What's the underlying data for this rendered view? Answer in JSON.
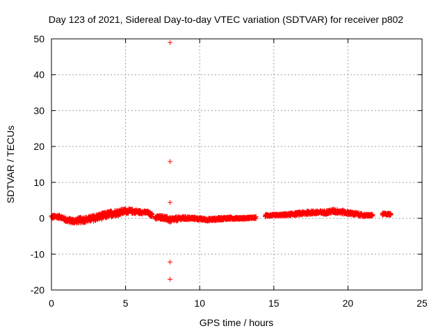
{
  "chart_data": {
    "type": "scatter",
    "title": "Day 123 of 2021, Sidereal Day-to-day VTEC variation (SDTVAR) for receiver p802",
    "xlabel": "GPS time / hours",
    "ylabel": "SDTVAR / TECUs",
    "xlim": [
      0,
      25
    ],
    "ylim": [
      -20,
      50
    ],
    "xticks": [
      0,
      5,
      10,
      15,
      20,
      25
    ],
    "yticks": [
      -20,
      -10,
      0,
      10,
      20,
      30,
      40,
      50
    ],
    "grid": true,
    "marker": "+",
    "color": "#ff0000",
    "series": [
      {
        "name": "SDTVAR",
        "outliers": [
          [
            8.0,
            49.0
          ],
          [
            8.0,
            15.8
          ],
          [
            8.0,
            4.4
          ],
          [
            8.0,
            -12.2
          ],
          [
            8.0,
            -17.0
          ]
        ],
        "profile": [
          [
            0.0,
            0.4,
            1.0
          ],
          [
            0.3,
            0.4,
            1.0
          ],
          [
            0.6,
            0.4,
            1.0
          ],
          [
            0.8,
            0.0,
            1.0
          ],
          [
            1.0,
            -0.5,
            1.2
          ],
          [
            1.5,
            -0.8,
            1.4
          ],
          [
            2.0,
            -0.5,
            1.6
          ],
          [
            2.5,
            -0.3,
            1.6
          ],
          [
            3.0,
            0.2,
            1.8
          ],
          [
            3.5,
            0.7,
            1.8
          ],
          [
            4.0,
            1.2,
            1.8
          ],
          [
            4.5,
            1.6,
            1.6
          ],
          [
            5.0,
            2.0,
            1.4
          ],
          [
            5.5,
            1.9,
            1.2
          ],
          [
            6.0,
            1.7,
            1.0
          ],
          [
            6.5,
            1.6,
            0.8
          ],
          [
            7.0,
            0.2,
            1.2
          ],
          [
            7.5,
            0.3,
            1.2
          ],
          [
            8.0,
            -0.5,
            1.4
          ],
          [
            8.4,
            -0.2,
            1.2
          ],
          [
            8.8,
            0.0,
            1.0
          ],
          [
            9.5,
            0.0,
            0.8
          ],
          [
            10.0,
            -0.2,
            0.8
          ],
          [
            10.5,
            -0.4,
            0.8
          ],
          [
            11.0,
            -0.3,
            0.8
          ],
          [
            11.5,
            -0.1,
            0.8
          ],
          [
            12.0,
            0.0,
            0.8
          ],
          [
            12.5,
            0.0,
            0.6
          ],
          [
            13.0,
            0.0,
            0.6
          ],
          [
            13.5,
            0.1,
            0.6
          ],
          [
            13.7,
            0.1,
            0.6
          ],
          [
            14.5,
            0.8,
            0.6
          ],
          [
            15.0,
            0.8,
            0.6
          ],
          [
            15.5,
            0.9,
            0.6
          ],
          [
            16.0,
            1.0,
            0.8
          ],
          [
            16.5,
            1.2,
            0.8
          ],
          [
            17.0,
            1.4,
            1.0
          ],
          [
            17.5,
            1.6,
            1.0
          ],
          [
            18.0,
            1.6,
            1.0
          ],
          [
            18.5,
            1.6,
            1.0
          ],
          [
            19.0,
            2.0,
            1.2
          ],
          [
            19.5,
            1.8,
            1.2
          ],
          [
            20.0,
            1.5,
            1.0
          ],
          [
            20.5,
            1.2,
            1.0
          ],
          [
            21.0,
            0.8,
            0.8
          ],
          [
            21.5,
            0.8,
            0.6
          ],
          [
            22.5,
            1.2,
            0.6
          ],
          [
            22.9,
            1.1,
            0.6
          ]
        ],
        "gaps": [
          [
            6.8,
            7.0
          ],
          [
            13.8,
            14.4
          ],
          [
            21.7,
            22.3
          ]
        ]
      }
    ]
  }
}
